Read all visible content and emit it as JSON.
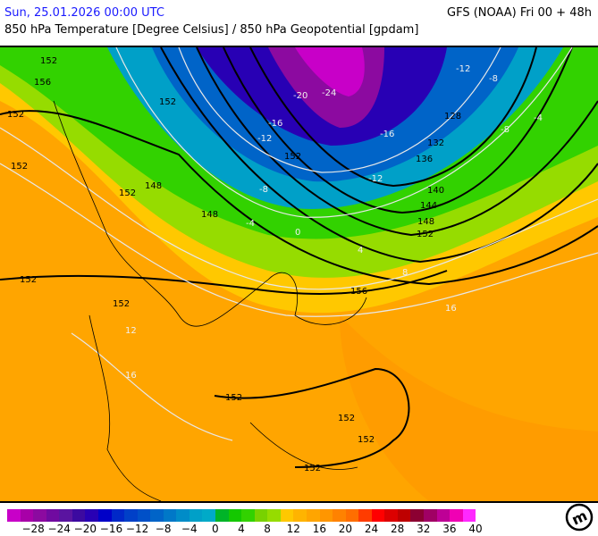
{
  "header": {
    "date": "Sun, 25.01.2026 00:00 UTC",
    "model": "GFS (NOAA) Fri 00 + 48h",
    "parameter": "850 hPa Temperature [Degree Celsius] / 850 hPa Geopotential [gpdam]"
  },
  "map": {
    "geopotential_labels": [
      "152",
      "156",
      "152",
      "152",
      "148",
      "152",
      "152",
      "148",
      "152",
      "128",
      "132",
      "136",
      "140",
      "144",
      "148",
      "152",
      "156",
      "152",
      "152",
      "152",
      "152",
      "152",
      "152"
    ],
    "temperature_labels": [
      "-20",
      "-24",
      "-16",
      "-12",
      "-8",
      "-4",
      "0",
      "4",
      "8",
      "-16",
      "-12",
      "-8",
      "12",
      "16",
      "16",
      "-12",
      "-8",
      "-4"
    ]
  },
  "legend": {
    "colors": [
      "#c800c8",
      "#a800a8",
      "#8c0aa0",
      "#700aa0",
      "#5a14a0",
      "#3c0aa0",
      "#2800b4",
      "#0000c8",
      "#0028c8",
      "#0040c8",
      "#0050c8",
      "#0064c8",
      "#0078c8",
      "#008cc8",
      "#00a0c8",
      "#00aac8",
      "#00b428",
      "#14c800",
      "#32d200",
      "#78d200",
      "#96dc00",
      "#ffc800",
      "#ffb400",
      "#ffa500",
      "#ff9600",
      "#ff8200",
      "#ff6e00",
      "#ff3c00",
      "#ff0000",
      "#dc0000",
      "#be0000",
      "#8c0032",
      "#a00064",
      "#be0096",
      "#f000b4",
      "#ff28ff"
    ],
    "tick_labels": [
      "−28",
      "−24",
      "−20",
      "−16",
      "−12",
      "−8",
      "−4",
      "0",
      "4",
      "8",
      "12",
      "16",
      "20",
      "24",
      "28",
      "32",
      "36",
      "40"
    ]
  },
  "logo_text": "m"
}
